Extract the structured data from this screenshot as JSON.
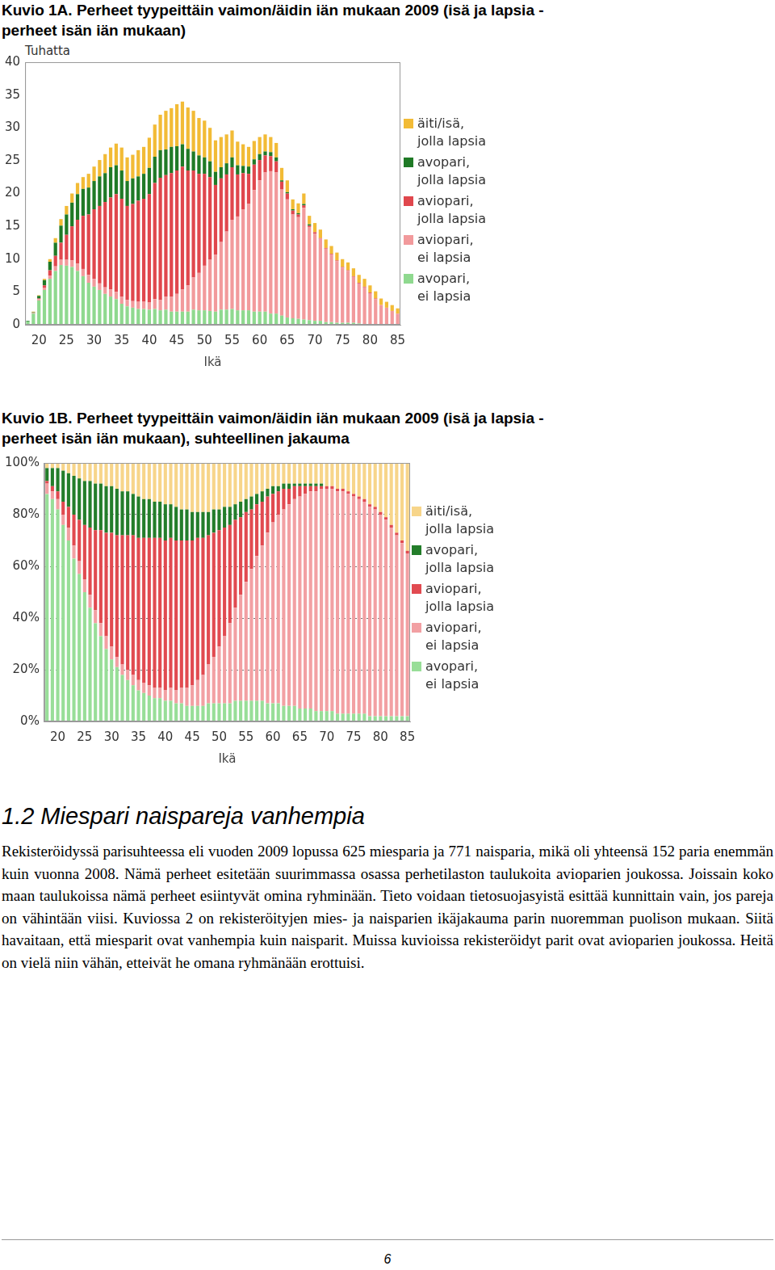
{
  "chart_data": [
    {
      "type": "bar",
      "title": "Kuvio 1A. Perheet tyypeittäin vaimon/äidin iän mukaan 2009 (isä ja lapsia -perheet isän iän mukaan)",
      "y_label": "Tuhatta",
      "x_label": "Ikä",
      "stacked": true,
      "grid": false,
      "legend": "right",
      "ylim": [
        0,
        40
      ],
      "yticks": [
        0,
        5,
        10,
        15,
        20,
        25,
        30,
        35,
        40
      ],
      "categories": [
        null,
        null,
        "20",
        null,
        null,
        null,
        null,
        "25",
        null,
        null,
        null,
        null,
        "30",
        null,
        null,
        null,
        null,
        "35",
        null,
        null,
        null,
        null,
        "40",
        null,
        null,
        null,
        null,
        "45",
        null,
        null,
        null,
        null,
        "50",
        null,
        null,
        null,
        null,
        "55",
        null,
        null,
        null,
        null,
        "60",
        null,
        null,
        null,
        null,
        "65",
        null,
        null,
        null,
        null,
        "70",
        null,
        null,
        null,
        null,
        "75",
        null,
        null,
        null,
        null,
        "80",
        null,
        null,
        null,
        null,
        "85"
      ],
      "series": [
        {
          "name": "avopari, ei lapsia",
          "color": "#8fd98f",
          "values": [
            0.5,
            1.7,
            3.7,
            5.3,
            7.0,
            8.2,
            9.1,
            9.0,
            8.8,
            8.2,
            7.4,
            6.4,
            5.8,
            5.3,
            4.7,
            4.3,
            3.9,
            3.2,
            2.8,
            2.6,
            2.4,
            2.4,
            2.3,
            2.4,
            2.2,
            2.3,
            2.0,
            2.0,
            2.0,
            2.0,
            2.3,
            2.2,
            2.2,
            2.1,
            2.0,
            2.3,
            2.3,
            2.4,
            2.2,
            2.2,
            2.2,
            2.0,
            2.0,
            2.0,
            1.7,
            1.7,
            1.4,
            1.1,
            1.0,
            0.9,
            0.8,
            0.7,
            0.6,
            0.6,
            0.4,
            0.4,
            0.3,
            0.3,
            0.3,
            0.3,
            0.2,
            0.1,
            0.1,
            0.1,
            0.1,
            0.1,
            0.1,
            0.1
          ]
        },
        {
          "name": "aviopari, ei lapsia",
          "color": "#f29a9c",
          "values": [
            0,
            0.1,
            0.2,
            0.3,
            0.5,
            0.7,
            0.8,
            0.9,
            1.0,
            1.1,
            1.1,
            1.2,
            1.2,
            1.0,
            1.0,
            1.1,
            1.1,
            1.1,
            1.0,
            1.0,
            1.1,
            1.1,
            1.1,
            1.5,
            1.6,
            2.0,
            2.3,
            2.7,
            3.4,
            4.0,
            4.9,
            5.7,
            6.8,
            7.8,
            8.7,
            10.3,
            11.9,
            13.6,
            14.3,
            15.4,
            16.2,
            18.5,
            20.0,
            21.2,
            21.7,
            21.5,
            19.2,
            18.0,
            15.8,
            15.5,
            17.0,
            14.2,
            13.3,
            12.5,
            11.2,
            10.3,
            9.4,
            8.4,
            7.9,
            7.0,
            6.1,
            5.6,
            4.7,
            3.8,
            2.9,
            2.5,
            2.0,
            1.6
          ]
        },
        {
          "name": "aviopari, jolla lapsia",
          "color": "#e0474d",
          "values": [
            0,
            0,
            0.1,
            0.4,
            0.8,
            1.6,
            2.6,
            3.8,
            5.2,
            6.7,
            8.1,
            9.2,
            10.6,
            11.8,
            13.0,
            14.0,
            14.9,
            14.9,
            14.3,
            14.8,
            15.4,
            15.7,
            16.5,
            17.7,
            18.6,
            18.5,
            18.8,
            18.8,
            18.7,
            17.5,
            16.3,
            15.1,
            14.0,
            12.6,
            10.6,
            9.7,
            8.7,
            8.0,
            6.4,
            5.5,
            4.6,
            3.9,
            3.1,
            2.6,
            2.3,
            1.7,
            1.2,
            0.9,
            0.6,
            0.4,
            0.4,
            0.2,
            0.2,
            0.1,
            0.1,
            0.1,
            0.1,
            0.1,
            0.1,
            0.1,
            0.1,
            0.1,
            0.1,
            0.1,
            0,
            0,
            0,
            0
          ]
        },
        {
          "name": "avopari, jolla lapsia",
          "color": "#1f7a26",
          "values": [
            0.1,
            0.1,
            0.4,
            0.8,
            1.3,
            2.0,
            2.6,
            3.1,
            3.6,
            3.9,
            4.1,
            4.1,
            4.3,
            4.5,
            4.4,
            4.6,
            4.4,
            4.3,
            3.8,
            3.9,
            3.7,
            3.8,
            4.0,
            4.0,
            4.2,
            3.9,
            4.0,
            3.7,
            3.4,
            3.3,
            2.9,
            2.8,
            2.5,
            2.4,
            2.0,
            1.7,
            1.7,
            1.5,
            1.4,
            1.1,
            1.1,
            0.8,
            0.9,
            0.6,
            0.6,
            0.6,
            0.2,
            0.2,
            0.2,
            0.2,
            0.2,
            0.2,
            0,
            0,
            0,
            0,
            0,
            0,
            0,
            0,
            0,
            0,
            0,
            0,
            0,
            0,
            0,
            0
          ]
        },
        {
          "name": "äiti/isä, jolla lapsia",
          "color": "#f2bb36",
          "values": [
            0,
            0.1,
            0.1,
            0.2,
            0.4,
            0.7,
            1.0,
            1.3,
            1.4,
            1.7,
            1.8,
            2.1,
            2.2,
            2.5,
            2.9,
            3.0,
            3.3,
            3.5,
            3.6,
            3.6,
            4.0,
            4.1,
            4.6,
            4.9,
            5.4,
            5.9,
            5.9,
            6.4,
            6.5,
            6.3,
            6.2,
            5.7,
            5.6,
            5.1,
            4.8,
            4.6,
            4.4,
            4.1,
            3.6,
            3.3,
            3.0,
            2.8,
            2.6,
            2.6,
            2.3,
            2.2,
            1.9,
            1.8,
            1.5,
            1.5,
            1.6,
            1.3,
            1.4,
            1.3,
            1.3,
            1.2,
            1.2,
            1.2,
            1.2,
            1.2,
            1.2,
            1.2,
            1.1,
            1.1,
            1.0,
            0.9,
            0.9,
            0.8
          ]
        }
      ]
    },
    {
      "type": "bar",
      "title": "Kuvio 1B. Perheet tyypeittäin vaimon/äidin iän mukaan 2009 (isä ja lapsia -perheet isän iän mukaan), suhteellinen jakauma",
      "x_label": "Ikä",
      "stacked": true,
      "grid": true,
      "legend": "right",
      "ylim": [
        0,
        100
      ],
      "yticks": [
        {
          "value": 0,
          "label": "0%"
        },
        {
          "value": 20,
          "label": "20%"
        },
        {
          "value": 40,
          "label": "40%"
        },
        {
          "value": 60,
          "label": "60%"
        },
        {
          "value": 80,
          "label": "80%"
        },
        {
          "value": 100,
          "label": "100%"
        }
      ],
      "categories": [
        null,
        null,
        "20",
        null,
        null,
        null,
        null,
        "25",
        null,
        null,
        null,
        null,
        "30",
        null,
        null,
        null,
        null,
        "35",
        null,
        null,
        null,
        null,
        "40",
        null,
        null,
        null,
        null,
        "45",
        null,
        null,
        null,
        null,
        "50",
        null,
        null,
        null,
        null,
        "55",
        null,
        null,
        null,
        null,
        "60",
        null,
        null,
        null,
        null,
        "65",
        null,
        null,
        null,
        null,
        "70",
        null,
        null,
        null,
        null,
        "75",
        null,
        null,
        null,
        null,
        "80",
        null,
        null,
        null,
        null,
        "85"
      ],
      "series": [
        {
          "name": "avopari, ei lapsia",
          "color": "#98de98",
          "values": [
            88,
            86,
            82,
            76,
            70,
            63,
            57,
            50,
            44,
            38,
            33,
            28,
            24,
            21,
            18,
            16,
            14,
            12,
            11,
            10,
            9,
            9,
            8,
            8,
            7,
            7,
            6,
            6,
            6,
            6,
            7,
            7,
            7,
            7,
            7,
            8,
            8,
            8,
            8,
            8,
            8,
            7,
            7,
            7,
            6,
            6,
            6,
            5,
            5,
            5,
            4,
            4,
            4,
            4,
            3,
            3,
            3,
            3,
            3,
            3,
            2,
            2,
            2,
            2,
            2,
            2,
            2,
            2
          ]
        },
        {
          "name": "aviopari, ei lapsia",
          "color": "#f2a0a3",
          "values": [
            4,
            3,
            4,
            4,
            5,
            5,
            5,
            5,
            5,
            5,
            5,
            5,
            5,
            4,
            4,
            4,
            4,
            4,
            4,
            4,
            4,
            4,
            4,
            5,
            5,
            6,
            7,
            8,
            10,
            12,
            15,
            18,
            22,
            26,
            31,
            36,
            41,
            46,
            51,
            56,
            60,
            66,
            70,
            73,
            76,
            78,
            80,
            82,
            83,
            84,
            85,
            86,
            86,
            86,
            86,
            86,
            85,
            84,
            83,
            82,
            81,
            80,
            78,
            76,
            73,
            70,
            67,
            63
          ]
        },
        {
          "name": "aviopari, jolla lapsia",
          "color": "#e14a50",
          "values": [
            1,
            2,
            3,
            5,
            8,
            12,
            16,
            21,
            26,
            31,
            36,
            40,
            44,
            47,
            50,
            52,
            54,
            55,
            56,
            57,
            58,
            58,
            58,
            58,
            58,
            57,
            57,
            56,
            55,
            53,
            50,
            48,
            45,
            42,
            38,
            34,
            30,
            27,
            23,
            20,
            17,
            14,
            11,
            9,
            8,
            6,
            5,
            4,
            3,
            2,
            2,
            1,
            1,
            1,
            1,
            1,
            1,
            1,
            1,
            1,
            1,
            1,
            1,
            1,
            1,
            1,
            1,
            1
          ]
        },
        {
          "name": "avopari, jolla lapsia",
          "color": "#237d2a",
          "values": [
            5,
            7,
            9,
            12,
            13,
            15,
            16,
            17,
            18,
            18,
            18,
            18,
            18,
            18,
            17,
            17,
            16,
            16,
            15,
            15,
            14,
            14,
            14,
            13,
            13,
            12,
            12,
            11,
            10,
            10,
            9,
            9,
            8,
            8,
            7,
            6,
            6,
            5,
            5,
            4,
            4,
            3,
            3,
            2,
            2,
            2,
            1,
            1,
            1,
            1,
            1,
            1,
            0,
            0,
            0,
            0,
            0,
            0,
            0,
            0,
            0,
            0,
            0,
            0,
            0,
            0,
            0,
            0
          ]
        },
        {
          "name": "äiti/isä, jolla lapsia",
          "color": "#f7d58a",
          "values": [
            2,
            2,
            2,
            3,
            4,
            5,
            6,
            7,
            7,
            8,
            8,
            9,
            9,
            10,
            11,
            11,
            12,
            13,
            14,
            14,
            15,
            15,
            16,
            16,
            17,
            18,
            18,
            19,
            19,
            19,
            19,
            18,
            18,
            17,
            17,
            16,
            15,
            14,
            13,
            12,
            11,
            10,
            9,
            9,
            8,
            8,
            8,
            8,
            8,
            8,
            8,
            8,
            9,
            9,
            10,
            10,
            11,
            12,
            13,
            14,
            16,
            17,
            19,
            21,
            24,
            27,
            30,
            34
          ]
        }
      ]
    }
  ],
  "section": {
    "heading": "1.2 Miespari naispareja vanhempia",
    "paragraph": "Rekisteröidyssä parisuhteessa eli vuoden 2009 lopussa 625 miesparia ja 771 naisparia, mikä oli yhteensä 152 paria enemmän kuin vuonna 2008. Nämä perheet esitetään suurimmassa osassa perhetilaston taulukoita avioparien joukossa. Joissain koko maan taulukoissa nämä perheet esiintyvät omina ryhminään. Tieto voidaan tietosuojasyistä esittää kunnittain vain, jos pareja on vähintään viisi. Kuviossa 2 on rekisteröityjen mies- ja naisparien ikäjakauma parin nuoremman puolison mukaan. Siitä havaitaan, että miesparit ovat vanhempia kuin naisparit. Muissa kuvioissa rekisteröidyt parit ovat avioparien joukossa. Heitä on vielä niin vähän, etteivät he omana ryhmänään erottuisi."
  },
  "page_number": "6"
}
